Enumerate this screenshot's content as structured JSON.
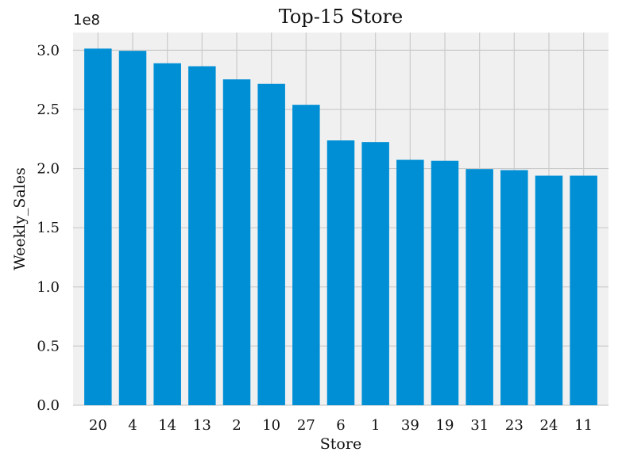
{
  "chart_data": {
    "type": "bar",
    "title": "Top-15 Store",
    "xlabel": "Store",
    "ylabel": "Weekly_Sales",
    "y_offset_label": "1e8",
    "categories": [
      "20",
      "4",
      "14",
      "13",
      "2",
      "10",
      "27",
      "6",
      "1",
      "39",
      "19",
      "31",
      "23",
      "24",
      "11"
    ],
    "values": [
      301400000,
      299500000,
      288999000,
      286500000,
      275400000,
      271600000,
      253900000,
      223800000,
      222400000,
      207400000,
      206600000,
      199600000,
      198700000,
      194000000,
      194000000
    ],
    "ylim": [
      0,
      315000000
    ],
    "yticks": [
      0,
      50000000,
      100000000,
      150000000,
      200000000,
      250000000,
      300000000
    ],
    "ytick_labels": [
      "0.0",
      "0.5",
      "1.0",
      "1.5",
      "2.0",
      "2.5",
      "3.0"
    ],
    "grid": true,
    "colors": {
      "bar": "#008fd5",
      "plot_bg": "#f0f0f0",
      "grid": "#cbcbcb",
      "page_bg": "#ffffff"
    }
  }
}
